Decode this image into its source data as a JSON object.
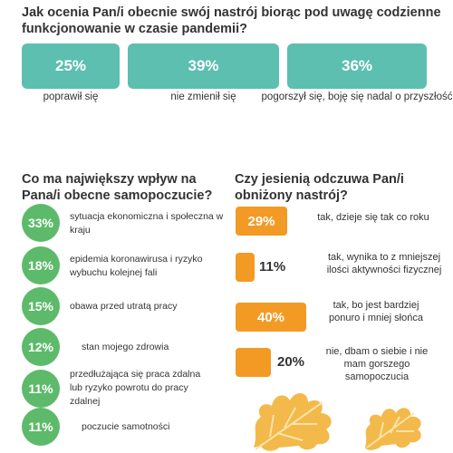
{
  "q1": {
    "title": "Jak ocenia Pan/i obecnie swój nastrój biorąc pod uwagę codzienne funkcjonowanie w czasie pandemii?",
    "items": [
      {
        "value": "25%",
        "label": "poprawił się"
      },
      {
        "value": "39%",
        "label": "nie zmienił się"
      },
      {
        "value": "36%",
        "label": "pogorszył się, boję się nadal o przyszłość"
      }
    ]
  },
  "q2": {
    "title": "Co ma największy wpływ na Pana/i obecne samopoczucie?",
    "items": [
      {
        "value": "33%",
        "label": "sytuacja ekonomiczna i społeczna w kraju"
      },
      {
        "value": "18%",
        "label": "epidemia koronawirusa i ryzyko wybuchu kolejnej fali"
      },
      {
        "value": "15%",
        "label": "obawa przed utratą pracy"
      },
      {
        "value": "12%",
        "label": "stan mojego zdrowia"
      },
      {
        "value": "11%",
        "label": "przedłużająca się praca zdalna lub ryzyko powrotu do pracy zdalnej"
      },
      {
        "value": "11%",
        "label": "poczucie samotności"
      }
    ]
  },
  "q3": {
    "title": "Czy jesienią odczuwa Pan/i obniżony nastrój?",
    "items": [
      {
        "value": "29%",
        "label": "tak, dzieje się tak co roku"
      },
      {
        "value": "11%",
        "label": "tak, wynika to z mniejszej ilości aktywności fizycznej"
      },
      {
        "value": "40%",
        "label": "tak, bo jest bardziej ponuro i mniej słońca"
      },
      {
        "value": "20%",
        "label": "nie, dbam o siebie i nie mam gorszego samopoczucia"
      }
    ]
  },
  "colors": {
    "teal": "#5cbfb0",
    "green": "#5dba6a",
    "orange": "#f39a25",
    "leaf": "#f3b94a"
  },
  "chart_data": [
    {
      "type": "bar",
      "title": "Jak ocenia Pan/i obecnie swój nastrój biorąc pod uwagę codzienne funkcjonowanie w czasie pandemii?",
      "categories": [
        "poprawił się",
        "nie zmienił się",
        "pogorszył się, boję się nadal o przyszłość"
      ],
      "values": [
        25,
        39,
        36
      ]
    },
    {
      "type": "bar",
      "title": "Co ma największy wpływ na Pana/i obecne samopoczucie?",
      "categories": [
        "sytuacja ekonomiczna i społeczna w kraju",
        "epidemia koronawirusa i ryzyko wybuchu kolejnej fali",
        "obawa przed utratą pracy",
        "stan mojego zdrowia",
        "przedłużająca się praca zdalna lub ryzyko powrotu do pracy zdalnej",
        "poczucie samotności"
      ],
      "values": [
        33,
        18,
        15,
        12,
        11,
        11
      ]
    },
    {
      "type": "bar",
      "title": "Czy jesienią odczuwa Pan/i obniżony nastrój?",
      "categories": [
        "tak, dzieje się tak co roku",
        "tak, wynika to z mniejszej ilości aktywności fizycznej",
        "tak, bo jest bardziej ponuro i mniej słońca",
        "nie, dbam o siebie i nie mam gorszego samopoczucia"
      ],
      "values": [
        29,
        11,
        40,
        20
      ]
    }
  ]
}
